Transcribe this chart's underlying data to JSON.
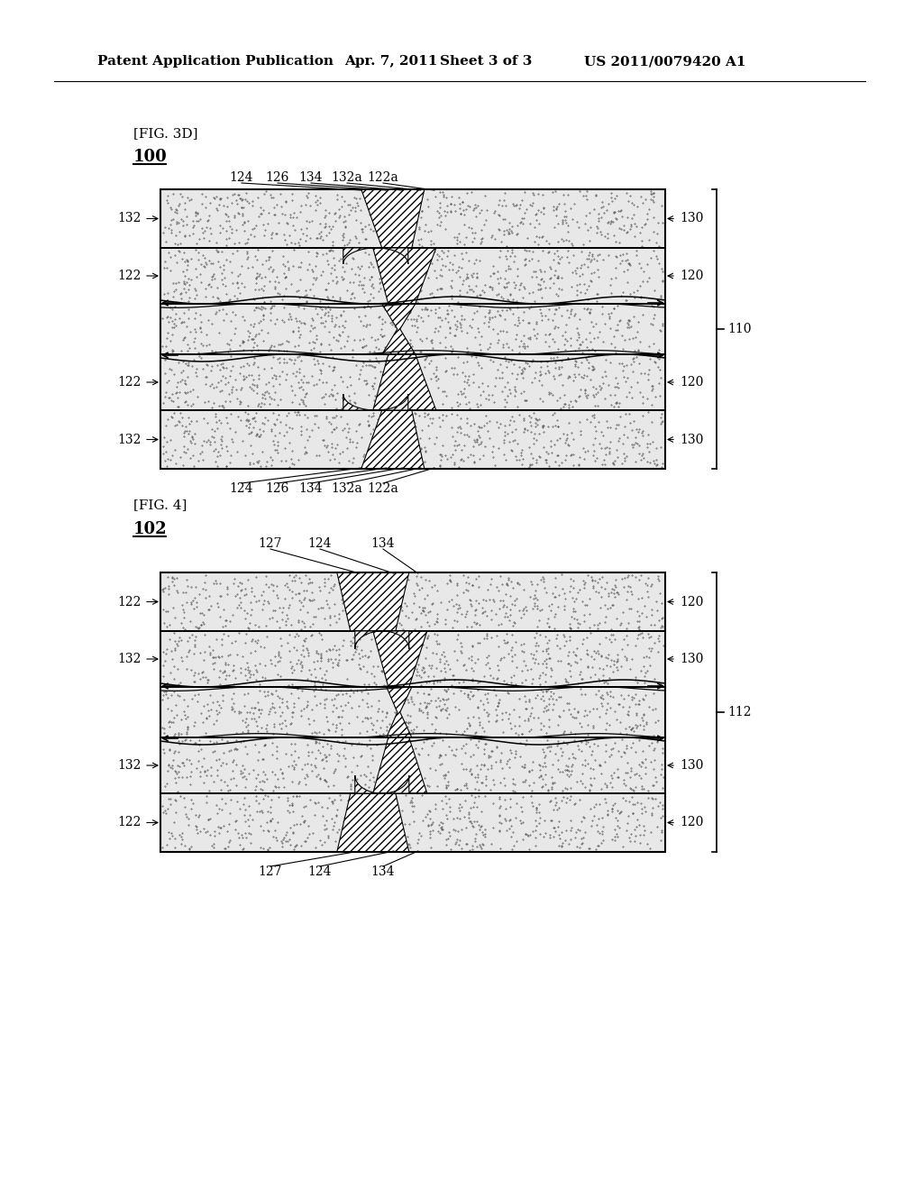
{
  "bg_color": "#ffffff",
  "header_text": "Patent Application Publication",
  "header_date": "Apr. 7, 2011",
  "header_sheet": "Sheet 3 of 3",
  "header_patent": "US 2011/0079420 A1",
  "fig1_label": "[FIG. 3D]",
  "fig1_num": "100",
  "fig2_label": "[FIG. 4]",
  "fig2_num": "102",
  "line_color": "#000000",
  "fig1_top_labels": [
    "124",
    "126",
    "134",
    "132a",
    "122a"
  ],
  "fig2_top_labels": [
    "127",
    "124",
    "134"
  ]
}
